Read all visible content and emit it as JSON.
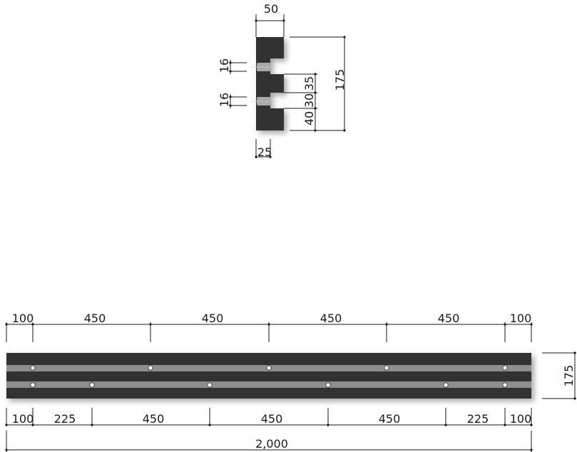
{
  "section": {
    "width": "50",
    "height": "175",
    "slot_offset": "25",
    "bolt_dia_upper": "16",
    "bolt_dia_lower": "16",
    "seg_top": "35",
    "seg_middle": "30",
    "seg_bottom": "40"
  },
  "elevation": {
    "top_dims": [
      "100",
      "450",
      "450",
      "450",
      "450",
      "100"
    ],
    "bottom_dims": [
      "100",
      "225",
      "450",
      "450",
      "450",
      "225",
      "100"
    ],
    "total": "2,000",
    "height": "175"
  },
  "colors": {
    "body": "#333333",
    "groove": "#8e8e8e",
    "dimension": "#1a1a1a"
  }
}
